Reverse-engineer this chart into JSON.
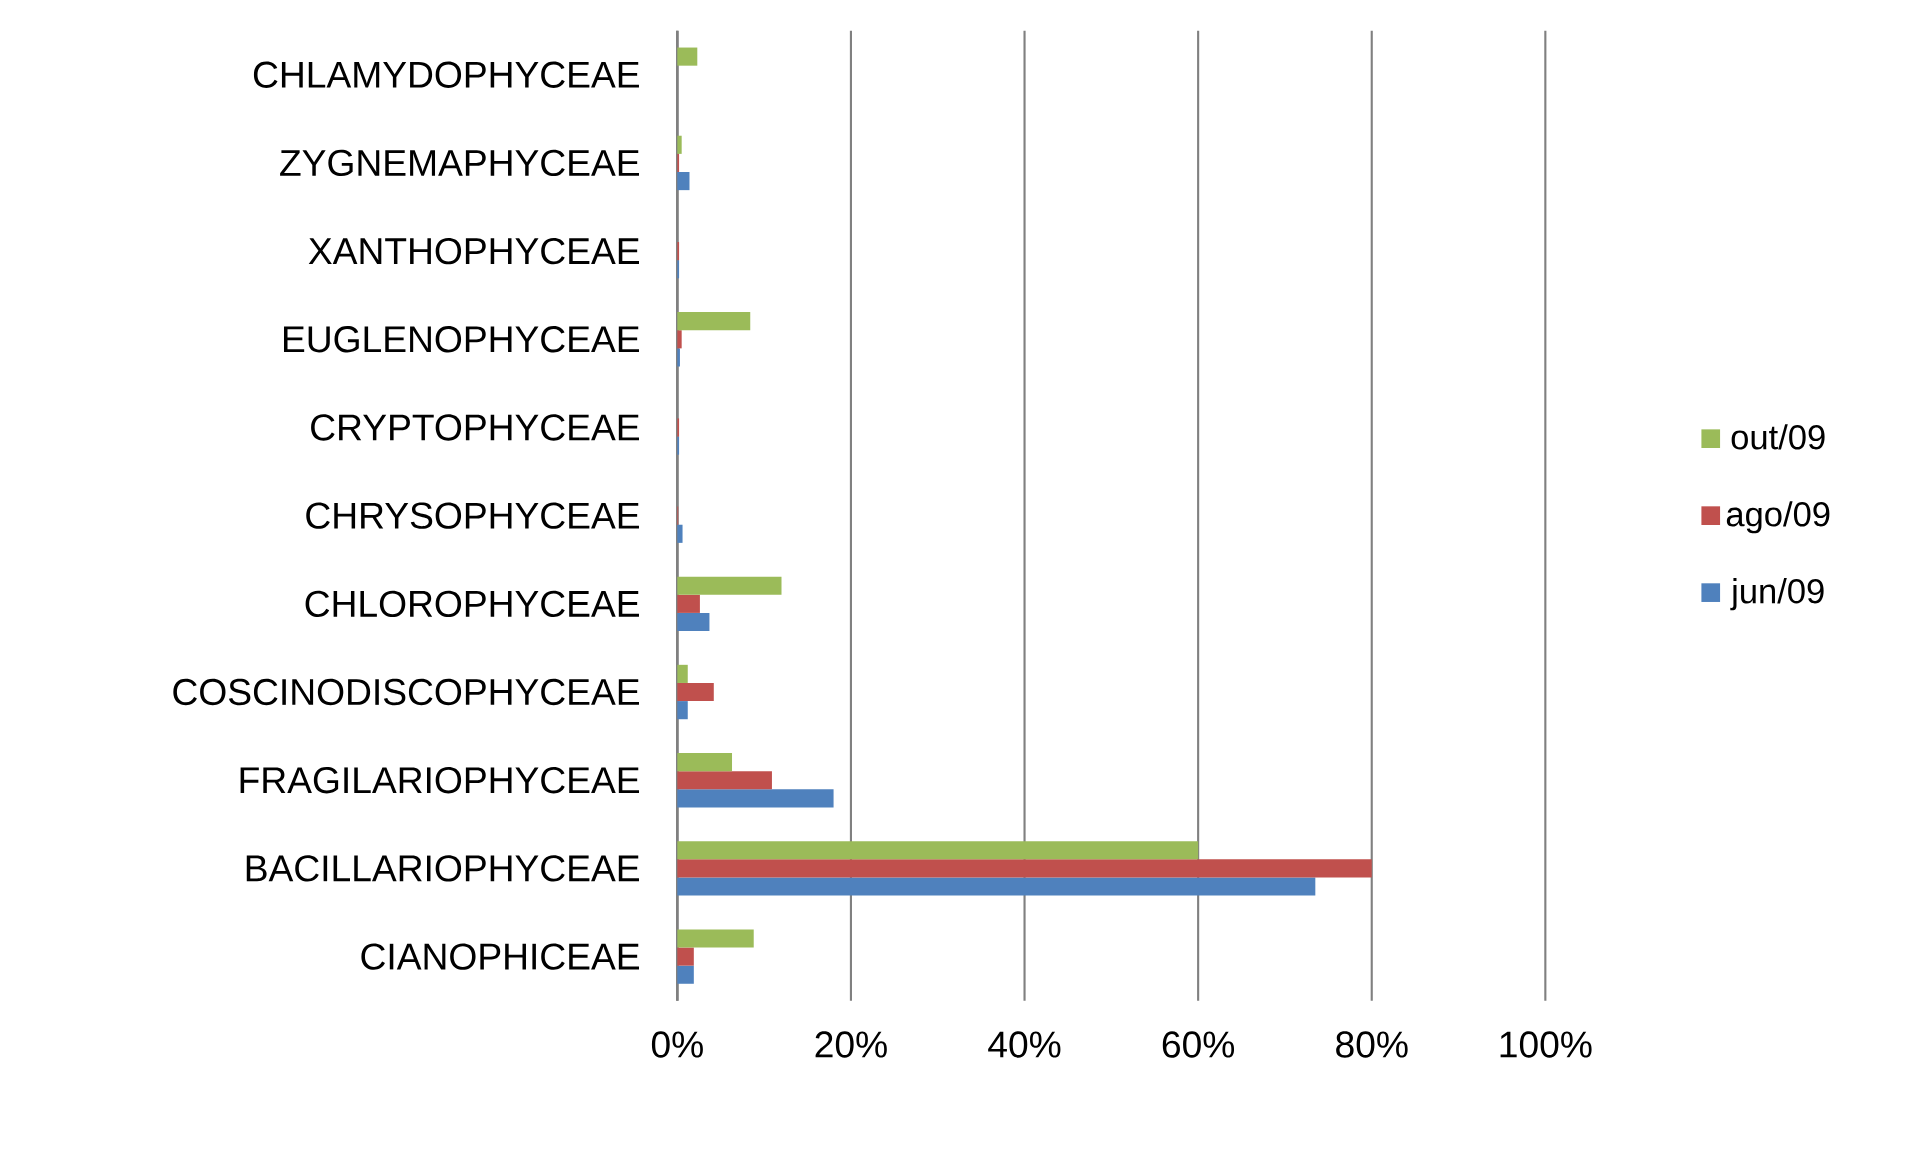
{
  "chart_data": {
    "type": "bar",
    "orientation": "horizontal",
    "categories": [
      "CHLAMYDOPHYCEAE",
      "ZYGNEMAPHYCEAE",
      "XANTHOPHYCEAE",
      "EUGLENOPHYCEAE",
      "CRYPTOPHYCEAE",
      "CHRYSOPHYCEAE",
      "CHLOROPHYCEAE",
      "COSCINODISCOPHYCEAE",
      "FRAGILARIOPHYCEAE",
      "BACILLARIOPHYCEAE",
      "CIANOPHICEAE"
    ],
    "series": [
      {
        "name": "jun/09",
        "color": "#4f81bd",
        "values": [
          0,
          1.4,
          0.2,
          0.3,
          0.2,
          0.6,
          3.7,
          1.2,
          18.0,
          73.5,
          1.9
        ]
      },
      {
        "name": "ago/09",
        "color": "#c0504d",
        "values": [
          0,
          0.2,
          0.2,
          0.5,
          0.2,
          0.1,
          2.6,
          4.2,
          10.9,
          80.0,
          1.9
        ]
      },
      {
        "name": "out/09",
        "color": "#9bbb59",
        "values": [
          2.3,
          0.5,
          null,
          8.4,
          null,
          null,
          12.0,
          1.2,
          6.3,
          60.0,
          8.8
        ]
      }
    ],
    "xlim": [
      0,
      100
    ],
    "xticks": [
      {
        "value": 0,
        "label": "0%"
      },
      {
        "value": 20,
        "label": "20%"
      },
      {
        "value": 40,
        "label": "40%"
      },
      {
        "value": 60,
        "label": "60%"
      },
      {
        "value": 80,
        "label": "80%"
      },
      {
        "value": 100,
        "label": "100%"
      }
    ],
    "grid": "x",
    "legend": "right"
  }
}
